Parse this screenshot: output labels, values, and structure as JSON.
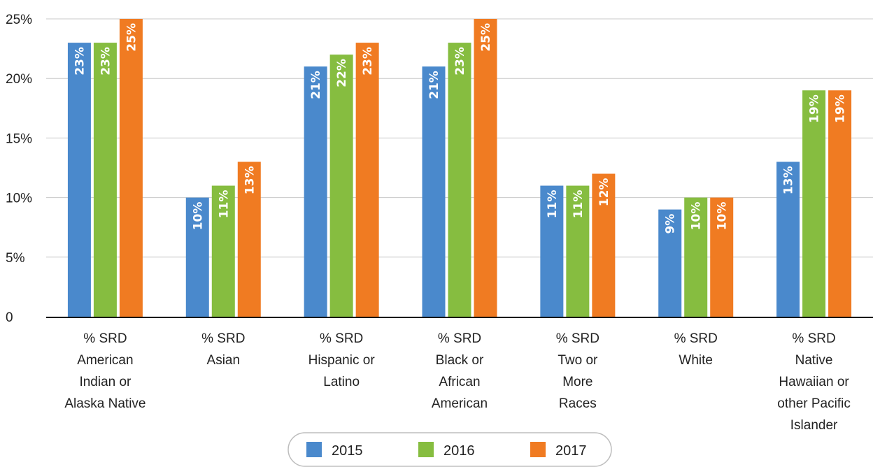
{
  "chart_data": {
    "type": "bar",
    "categories": [
      [
        "% SRD",
        "American",
        "Indian or",
        "Alaska Native"
      ],
      [
        "% SRD",
        "Asian"
      ],
      [
        "% SRD",
        "Hispanic or",
        "Latino"
      ],
      [
        "% SRD",
        "Black or",
        "African",
        "American"
      ],
      [
        "% SRD",
        "Two or",
        "More",
        "Races"
      ],
      [
        "% SRD",
        "White"
      ],
      [
        "% SRD",
        "Native",
        "Hawaiian or",
        "other Pacific",
        "Islander"
      ]
    ],
    "series": [
      {
        "name": "2015",
        "color": "#4a89cc",
        "values": [
          23,
          10,
          21,
          21,
          11,
          9,
          13
        ],
        "labels": [
          "23%",
          "10%",
          "21%",
          "21%",
          "11%",
          "9%",
          "13%"
        ]
      },
      {
        "name": "2016",
        "color": "#86bd40",
        "values": [
          23,
          11,
          22,
          23,
          11,
          10,
          19
        ],
        "labels": [
          "23%",
          "11%",
          "22%",
          "23%",
          "11%",
          "10%",
          "19%"
        ]
      },
      {
        "name": "2017",
        "color": "#f07b22",
        "values": [
          25,
          13,
          23,
          25,
          12,
          10,
          19
        ],
        "labels": [
          "25%",
          "13%",
          "23%",
          "25%",
          "12%",
          "10%",
          "19%"
        ]
      }
    ],
    "ylim": [
      0,
      25
    ],
    "yticks": [
      0,
      5,
      10,
      15,
      20,
      25
    ],
    "ytick_labels": [
      "0",
      "5%",
      "10%",
      "15%",
      "20%",
      "25%"
    ],
    "grid": true,
    "legend": "bottom"
  }
}
